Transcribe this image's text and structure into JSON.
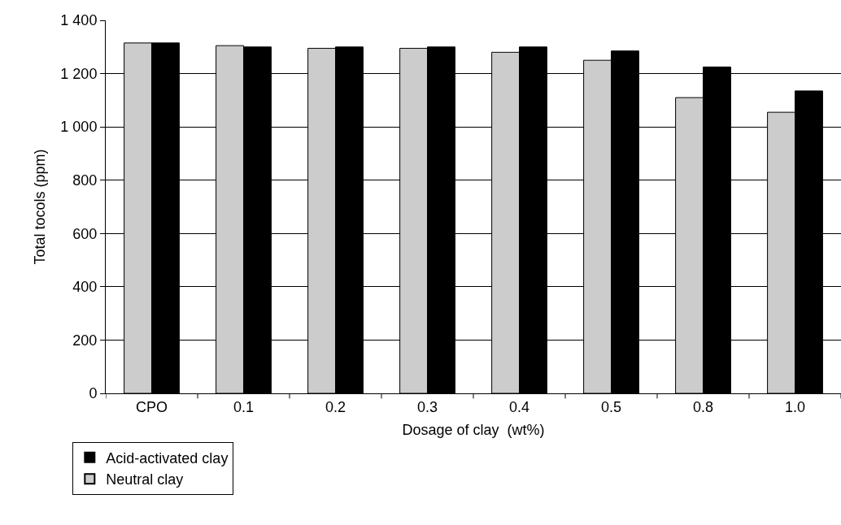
{
  "chart_data": {
    "type": "bar",
    "xlabel": "Dosage of clay  (wt%)",
    "ylabel": "Total tocols (ppm)",
    "categories": [
      "CPO",
      "0.1",
      "0.2",
      "0.3",
      "0.4",
      "0.5",
      "0.8",
      "1.0"
    ],
    "series": [
      {
        "name": "Neutral clay",
        "color": "#cccccc",
        "values": [
          1315,
          1305,
          1295,
          1295,
          1280,
          1250,
          1110,
          1055
        ]
      },
      {
        "name": "Acid-activated clay",
        "color": "#000000",
        "values": [
          1315,
          1300,
          1300,
          1300,
          1300,
          1285,
          1225,
          1135
        ]
      }
    ],
    "ylim": [
      0,
      1400
    ],
    "yticks": [
      0,
      {
        "value": 200,
        "label": "200"
      },
      {
        "value": 400,
        "label": "400"
      },
      {
        "value": 600,
        "label": "600"
      },
      {
        "value": 800,
        "label": "800"
      },
      {
        "value": 1000,
        "label": "1 000"
      },
      {
        "value": 1200,
        "label": "1 200"
      },
      {
        "value": 1400,
        "label": "1 400"
      }
    ],
    "grid": "y",
    "legend": "bottom left"
  }
}
